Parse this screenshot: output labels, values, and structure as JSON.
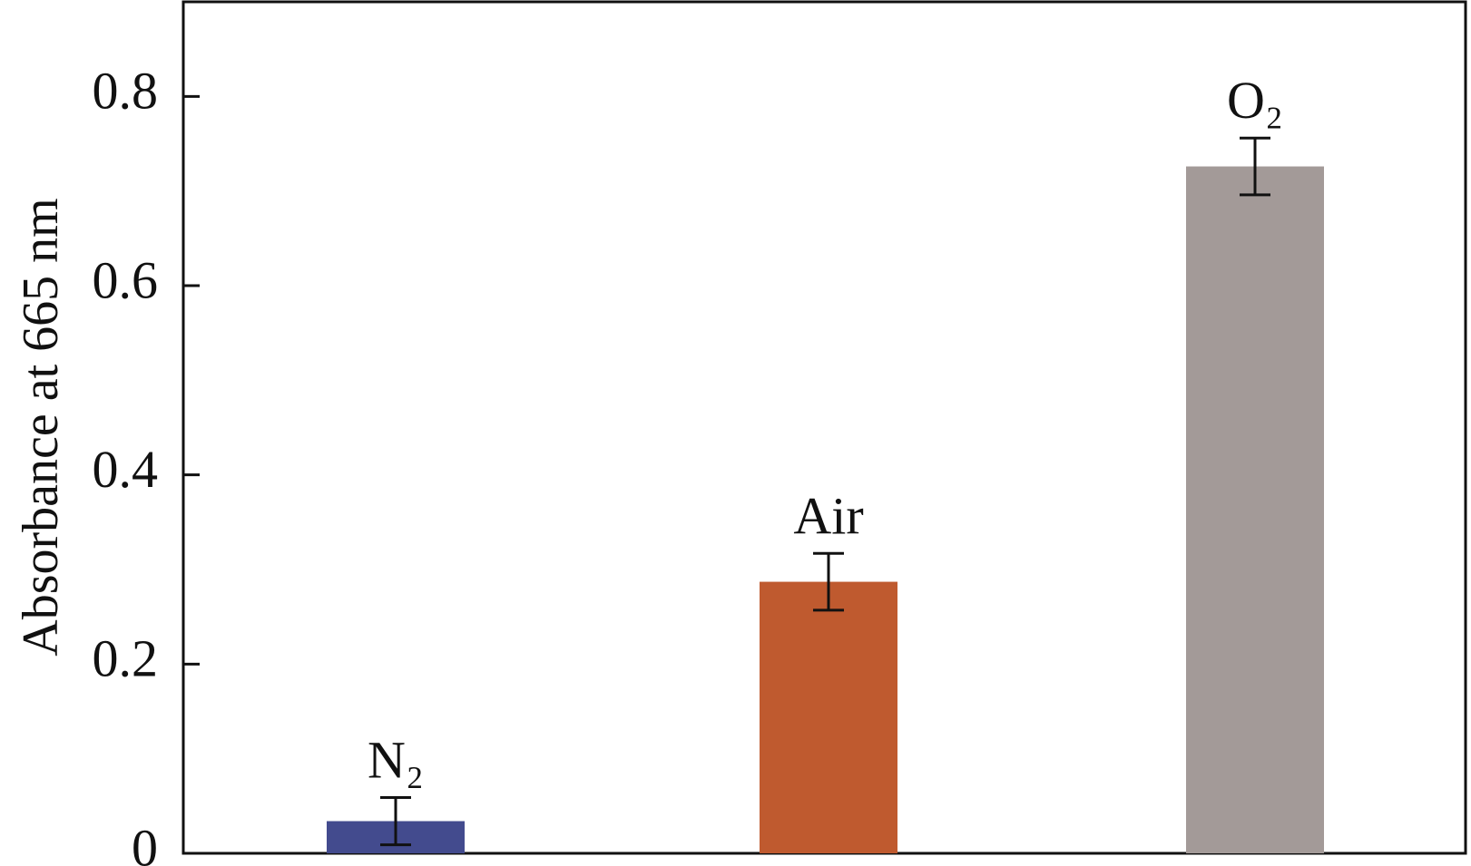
{
  "chart_data": {
    "type": "bar",
    "ylabel": "Absorbance at 665 nm",
    "categories": [
      "N₂",
      "Air",
      "O₂"
    ],
    "values": [
      0.034,
      0.287,
      0.726
    ],
    "errors": [
      0.025,
      0.03,
      0.03
    ],
    "colors": [
      "#434b8e",
      "#bf5a2f",
      "#a39a98"
    ],
    "ylim": [
      0,
      0.9
    ],
    "yticks": [
      0,
      0.2,
      0.4,
      0.6,
      0.8
    ]
  }
}
